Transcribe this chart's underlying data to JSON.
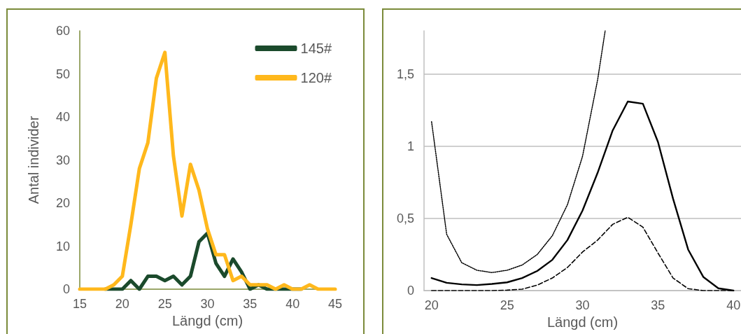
{
  "chart_data": [
    {
      "type": "line",
      "xlabel": "Längd (cm)",
      "ylabel": "Antal individer",
      "x": [
        15,
        16,
        17,
        18,
        19,
        20,
        21,
        22,
        23,
        24,
        25,
        26,
        27,
        28,
        29,
        30,
        31,
        32,
        33,
        34,
        35,
        36,
        37,
        38,
        39,
        40,
        41,
        42,
        43,
        44,
        45
      ],
      "xlim": [
        15,
        45
      ],
      "xticks": [
        15,
        20,
        25,
        30,
        35,
        40,
        45
      ],
      "ylim": [
        0,
        60
      ],
      "yticks": [
        0,
        10,
        20,
        30,
        40,
        50,
        60
      ],
      "grid": false,
      "legend": "top right",
      "marker": "none",
      "line_style": "solid",
      "series": [
        {
          "name": "145#",
          "color": "#1b4a2c",
          "values": [
            null,
            null,
            null,
            0,
            0,
            0,
            2,
            0,
            3,
            3,
            2,
            3,
            1,
            3,
            11,
            13,
            6,
            3,
            7,
            4,
            0,
            1,
            0,
            0,
            0,
            0,
            0,
            null,
            null,
            null,
            null
          ]
        },
        {
          "name": "120#",
          "color": "#ffb81c",
          "values": [
            0,
            0,
            0,
            0,
            1,
            3,
            15,
            28,
            34,
            49,
            55,
            31,
            17,
            29,
            23,
            14,
            8,
            8,
            2,
            3,
            1,
            1,
            1,
            0,
            1,
            0,
            0,
            1,
            0,
            0,
            0
          ]
        }
      ]
    },
    {
      "type": "line",
      "xlabel": "Längd (cm)",
      "x": [
        20,
        21,
        22,
        23,
        24,
        25,
        26,
        27,
        28,
        29,
        30,
        31,
        32,
        33,
        34,
        35,
        36,
        37,
        38,
        39,
        40
      ],
      "xlim": [
        19.5,
        40.5
      ],
      "xticks": [
        20,
        25,
        30,
        35,
        40
      ],
      "ylim": [
        0,
        1.8
      ],
      "yticks": [
        0,
        {
          "value": 0.5,
          "label": "0,5"
        },
        1,
        {
          "value": 1.5,
          "label": "1,5"
        }
      ],
      "grid": "y",
      "legend": false,
      "marker": "none",
      "series": [
        {
          "color": "#000000",
          "line_style": "solid",
          "values": [
            0.087,
            0.054,
            0.043,
            0.038,
            0.046,
            0.057,
            0.087,
            0.136,
            0.213,
            0.35,
            0.554,
            0.816,
            1.11,
            1.31,
            1.295,
            1.03,
            0.636,
            0.284,
            0.095,
            0.016,
            0
          ]
        },
        {
          "color": "#000000",
          "line_style": "dashed",
          "values": [
            0,
            0,
            0,
            0,
            0,
            0.003,
            0.01,
            0.038,
            0.087,
            0.16,
            0.267,
            0.35,
            0.459,
            0.508,
            0.44,
            0.26,
            0.087,
            0.013,
            0,
            0,
            0
          ]
        },
        {
          "color": "#000000",
          "line_style": "dotted",
          "x": [
            20,
            21,
            22,
            23,
            24,
            25,
            26,
            27,
            28,
            29,
            30,
            31,
            31.5
          ],
          "values": [
            1.17,
            0.39,
            0.193,
            0.141,
            0.125,
            0.141,
            0.177,
            0.25,
            0.38,
            0.595,
            0.93,
            1.46,
            1.8
          ]
        }
      ]
    }
  ]
}
